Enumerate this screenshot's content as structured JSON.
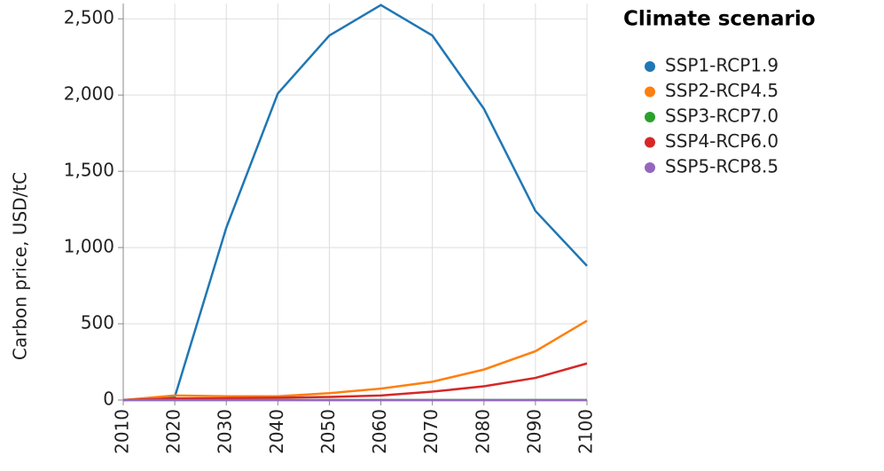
{
  "chart_data": {
    "type": "line",
    "x": [
      2010,
      2020,
      2030,
      2040,
      2050,
      2060,
      2070,
      2080,
      2090,
      2100
    ],
    "series": [
      {
        "name": "SSP1-RCP1.9",
        "color": "#1f77b4",
        "values": [
          0,
          20,
          1130,
          2010,
          2390,
          2590,
          2390,
          1910,
          1240,
          880
        ]
      },
      {
        "name": "SSP2-RCP4.5",
        "color": "#ff7f0e",
        "values": [
          0,
          30,
          25,
          25,
          45,
          75,
          120,
          200,
          320,
          520
        ]
      },
      {
        "name": "SSP3-RCP7.0",
        "color": "#2ca02c",
        "values": [
          0,
          0,
          0,
          0,
          0,
          0,
          0,
          0,
          0,
          0
        ]
      },
      {
        "name": "SSP4-RCP6.0",
        "color": "#d62728",
        "values": [
          0,
          10,
          12,
          15,
          20,
          30,
          55,
          90,
          145,
          240
        ]
      },
      {
        "name": "SSP5-RCP8.5",
        "color": "#9467bd",
        "values": [
          0,
          0,
          0,
          0,
          0,
          0,
          0,
          0,
          0,
          0
        ]
      }
    ],
    "ylabel": "Carbon price, USD/tC",
    "legend_title": "Climate scenario",
    "xlim": [
      2010,
      2100
    ],
    "xticks": [
      2010,
      2020,
      2030,
      2040,
      2050,
      2060,
      2070,
      2080,
      2090,
      2100
    ],
    "ylim": [
      0,
      2600
    ],
    "yticks": [
      0,
      500,
      {
        "value": 1000,
        "label": "1,000"
      },
      {
        "value": 1500,
        "label": "1,500"
      },
      {
        "value": 2000,
        "label": "2,000"
      },
      {
        "value": 2500,
        "label": "2,500"
      }
    ],
    "grid": true,
    "legend": "right"
  }
}
